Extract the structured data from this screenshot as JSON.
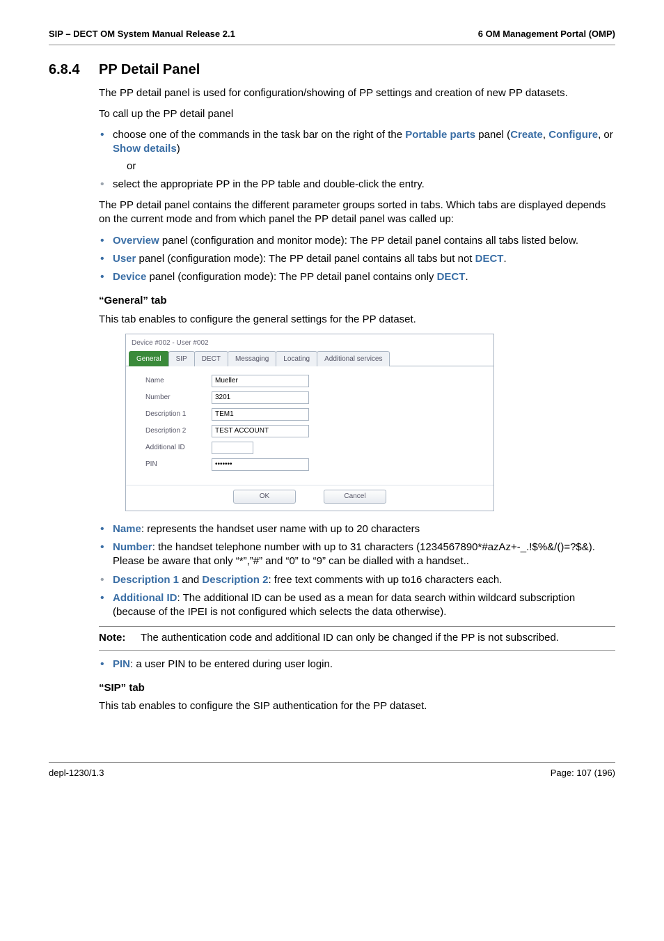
{
  "header": {
    "left": "SIP – DECT OM System Manual Release 2.1",
    "right": "6 OM Management Portal (OMP)"
  },
  "section": {
    "num": "6.8.4",
    "title": "PP Detail Panel"
  },
  "p1": "The PP detail panel is used for configuration/showing of PP settings and creation of new PP datasets.",
  "p2": "To call up the PP detail panel",
  "cmd_list": {
    "i1_a": "choose one of the commands in the task bar on the right of the ",
    "i1_link": "Portable parts",
    "i1_b": " panel (",
    "i1_c1": "Create",
    "i1_sep1": ", ",
    "i1_c2": "Configure",
    "i1_sep2": ", or ",
    "i1_c3": "Show details",
    "i1_close": ")",
    "or": "or",
    "i2": "select the appropriate PP in the PP table and double-click the entry."
  },
  "p3": "The PP detail panel contains the different parameter groups sorted in tabs. Which tabs are displayed depends on the current mode and from which panel the PP detail panel was called up:",
  "panel_list": {
    "ov_link": "Overview",
    "ov_txt": " panel (configuration and monitor mode): The PP detail panel contains all tabs listed below.",
    "us_link": "User",
    "us_txt_a": " panel (configuration mode): The PP detail panel contains all tabs but not ",
    "us_link2": "DECT",
    "us_dot": ".",
    "de_link": "Device",
    "de_txt_a": " panel (configuration mode): The PP detail panel contains only ",
    "de_link2": "DECT",
    "de_dot": "."
  },
  "general_head": "“General” tab",
  "general_intro": "This tab enables to configure the general settings for the PP dataset.",
  "screenshot": {
    "title": "Device #002 - User #002",
    "tabs": {
      "t1": "General",
      "t2": "SIP",
      "t3": "DECT",
      "t4": "Messaging",
      "t5": "Locating",
      "t6": "Additional services"
    },
    "rows": {
      "name_l": "Name",
      "name_v": "Mueller",
      "number_l": "Number",
      "number_v": "3201",
      "d1_l": "Description 1",
      "d1_v": "TEM1",
      "d2_l": "Description 2",
      "d2_v": "TEST ACCOUNT",
      "aid_l": "Additional ID",
      "aid_v": "",
      "pin_l": "PIN",
      "pin_v": "•••••••"
    },
    "btn_ok": "OK",
    "btn_cancel": "Cancel"
  },
  "field_list": {
    "name_l": "Name",
    "name_t": ": represents the handset user name with up to 20 characters",
    "num_l": "Number",
    "num_t": ": the handset telephone number with up to 31 characters (1234567890*#azAz+-_.!$%&/()=?$&). Please be aware that only “*”,”#” and “0” to “9” can be dialled with a handset..",
    "d1_l": "Description 1",
    "d_mid": " and ",
    "d2_l": "Description 2",
    "d_t": ": free text comments with up to16 characters each.",
    "aid_l": "Additional ID",
    "aid_t": ": The additional ID can be used as a mean for data search within wildcard subscription (because of the IPEI is not configured which selects the data otherwise)."
  },
  "note": {
    "label": "Note:",
    "text": "The authentication code and additional ID can only be changed if the PP is not subscribed."
  },
  "pin_list": {
    "pin_l": "PIN",
    "pin_t": ": a user PIN to be entered during user login."
  },
  "sip_head": " “SIP” tab",
  "sip_intro": "This tab enables to configure the SIP authentication for the PP dataset.",
  "footer": {
    "left": "depl-1230/1.3",
    "right": "Page: 107 (196)"
  }
}
